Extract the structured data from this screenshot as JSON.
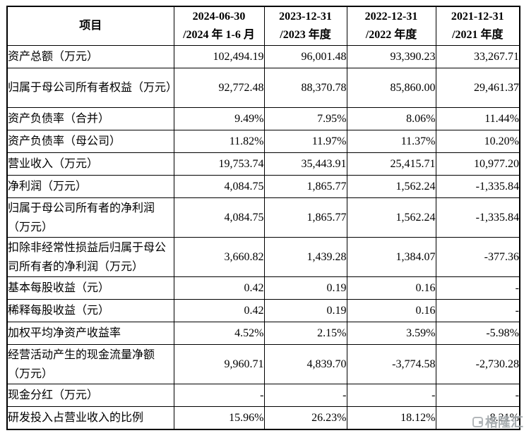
{
  "table": {
    "header": {
      "item_label": "项目",
      "periods": [
        {
          "line1": "2024-06-30",
          "line2": "/2024 年 1-6 月"
        },
        {
          "line1": "2023-12-31",
          "line2": "/2023 年度"
        },
        {
          "line1": "2022-12-31",
          "line2": "/2022 年度"
        },
        {
          "line1": "2021-12-31",
          "line2": "/2021 年度"
        }
      ]
    },
    "rows": [
      {
        "label": "资产总额（万元）",
        "values": [
          "102,494.19",
          "96,001.48",
          "93,390.23",
          "33,267.71"
        ],
        "tall": false
      },
      {
        "label": "归属于母公司所有者权益（万元）",
        "values": [
          "92,772.48",
          "88,370.78",
          "85,860.00",
          "29,461.37"
        ],
        "tall": true
      },
      {
        "label": "资产负债率（合并）",
        "values": [
          "9.49%",
          "7.95%",
          "8.06%",
          "11.44%"
        ],
        "tall": false
      },
      {
        "label": "资产负债率（母公司）",
        "values": [
          "11.82%",
          "11.97%",
          "11.37%",
          "10.20%"
        ],
        "tall": false
      },
      {
        "label": "营业收入（万元）",
        "values": [
          "19,753.74",
          "35,443.91",
          "25,415.71",
          "10,977.20"
        ],
        "tall": false
      },
      {
        "label": "净利润（万元）",
        "values": [
          "4,084.75",
          "1,865.77",
          "1,562.24",
          "-1,335.84"
        ],
        "tall": false
      },
      {
        "label": "归属于母公司所有者的净利润（万元）",
        "values": [
          "4,084.75",
          "1,865.77",
          "1,562.24",
          "-1,335.84"
        ],
        "tall": true
      },
      {
        "label": "扣除非经常性损益后归属于母公司所有者的净利润（万元）",
        "values": [
          "3,660.82",
          "1,439.28",
          "1,384.07",
          "-377.36"
        ],
        "tall": true
      },
      {
        "label": "基本每股收益（元）",
        "values": [
          "0.42",
          "0.19",
          "0.16",
          "-"
        ],
        "tall": false
      },
      {
        "label": "稀释每股收益（元）",
        "values": [
          "0.42",
          "0.19",
          "0.16",
          "-"
        ],
        "tall": false
      },
      {
        "label": "加权平均净资产收益率",
        "values": [
          "4.52%",
          "2.15%",
          "3.59%",
          "-5.98%"
        ],
        "tall": false
      },
      {
        "label": "经营活动产生的现金流量净额（万元）",
        "values": [
          "9,960.71",
          "4,839.70",
          "-3,774.58",
          "-2,730.28"
        ],
        "tall": true
      },
      {
        "label": "现金分红（万元）",
        "values": [
          "-",
          "-",
          "-",
          "-"
        ],
        "tall": false
      },
      {
        "label": "研发投入占营业收入的比例",
        "values": [
          "15.96%",
          "26.23%",
          "18.12%",
          "8.21%"
        ],
        "tall": false
      }
    ]
  },
  "watermark": {
    "text": "格隆汇",
    "color": "#9aa0a4"
  }
}
